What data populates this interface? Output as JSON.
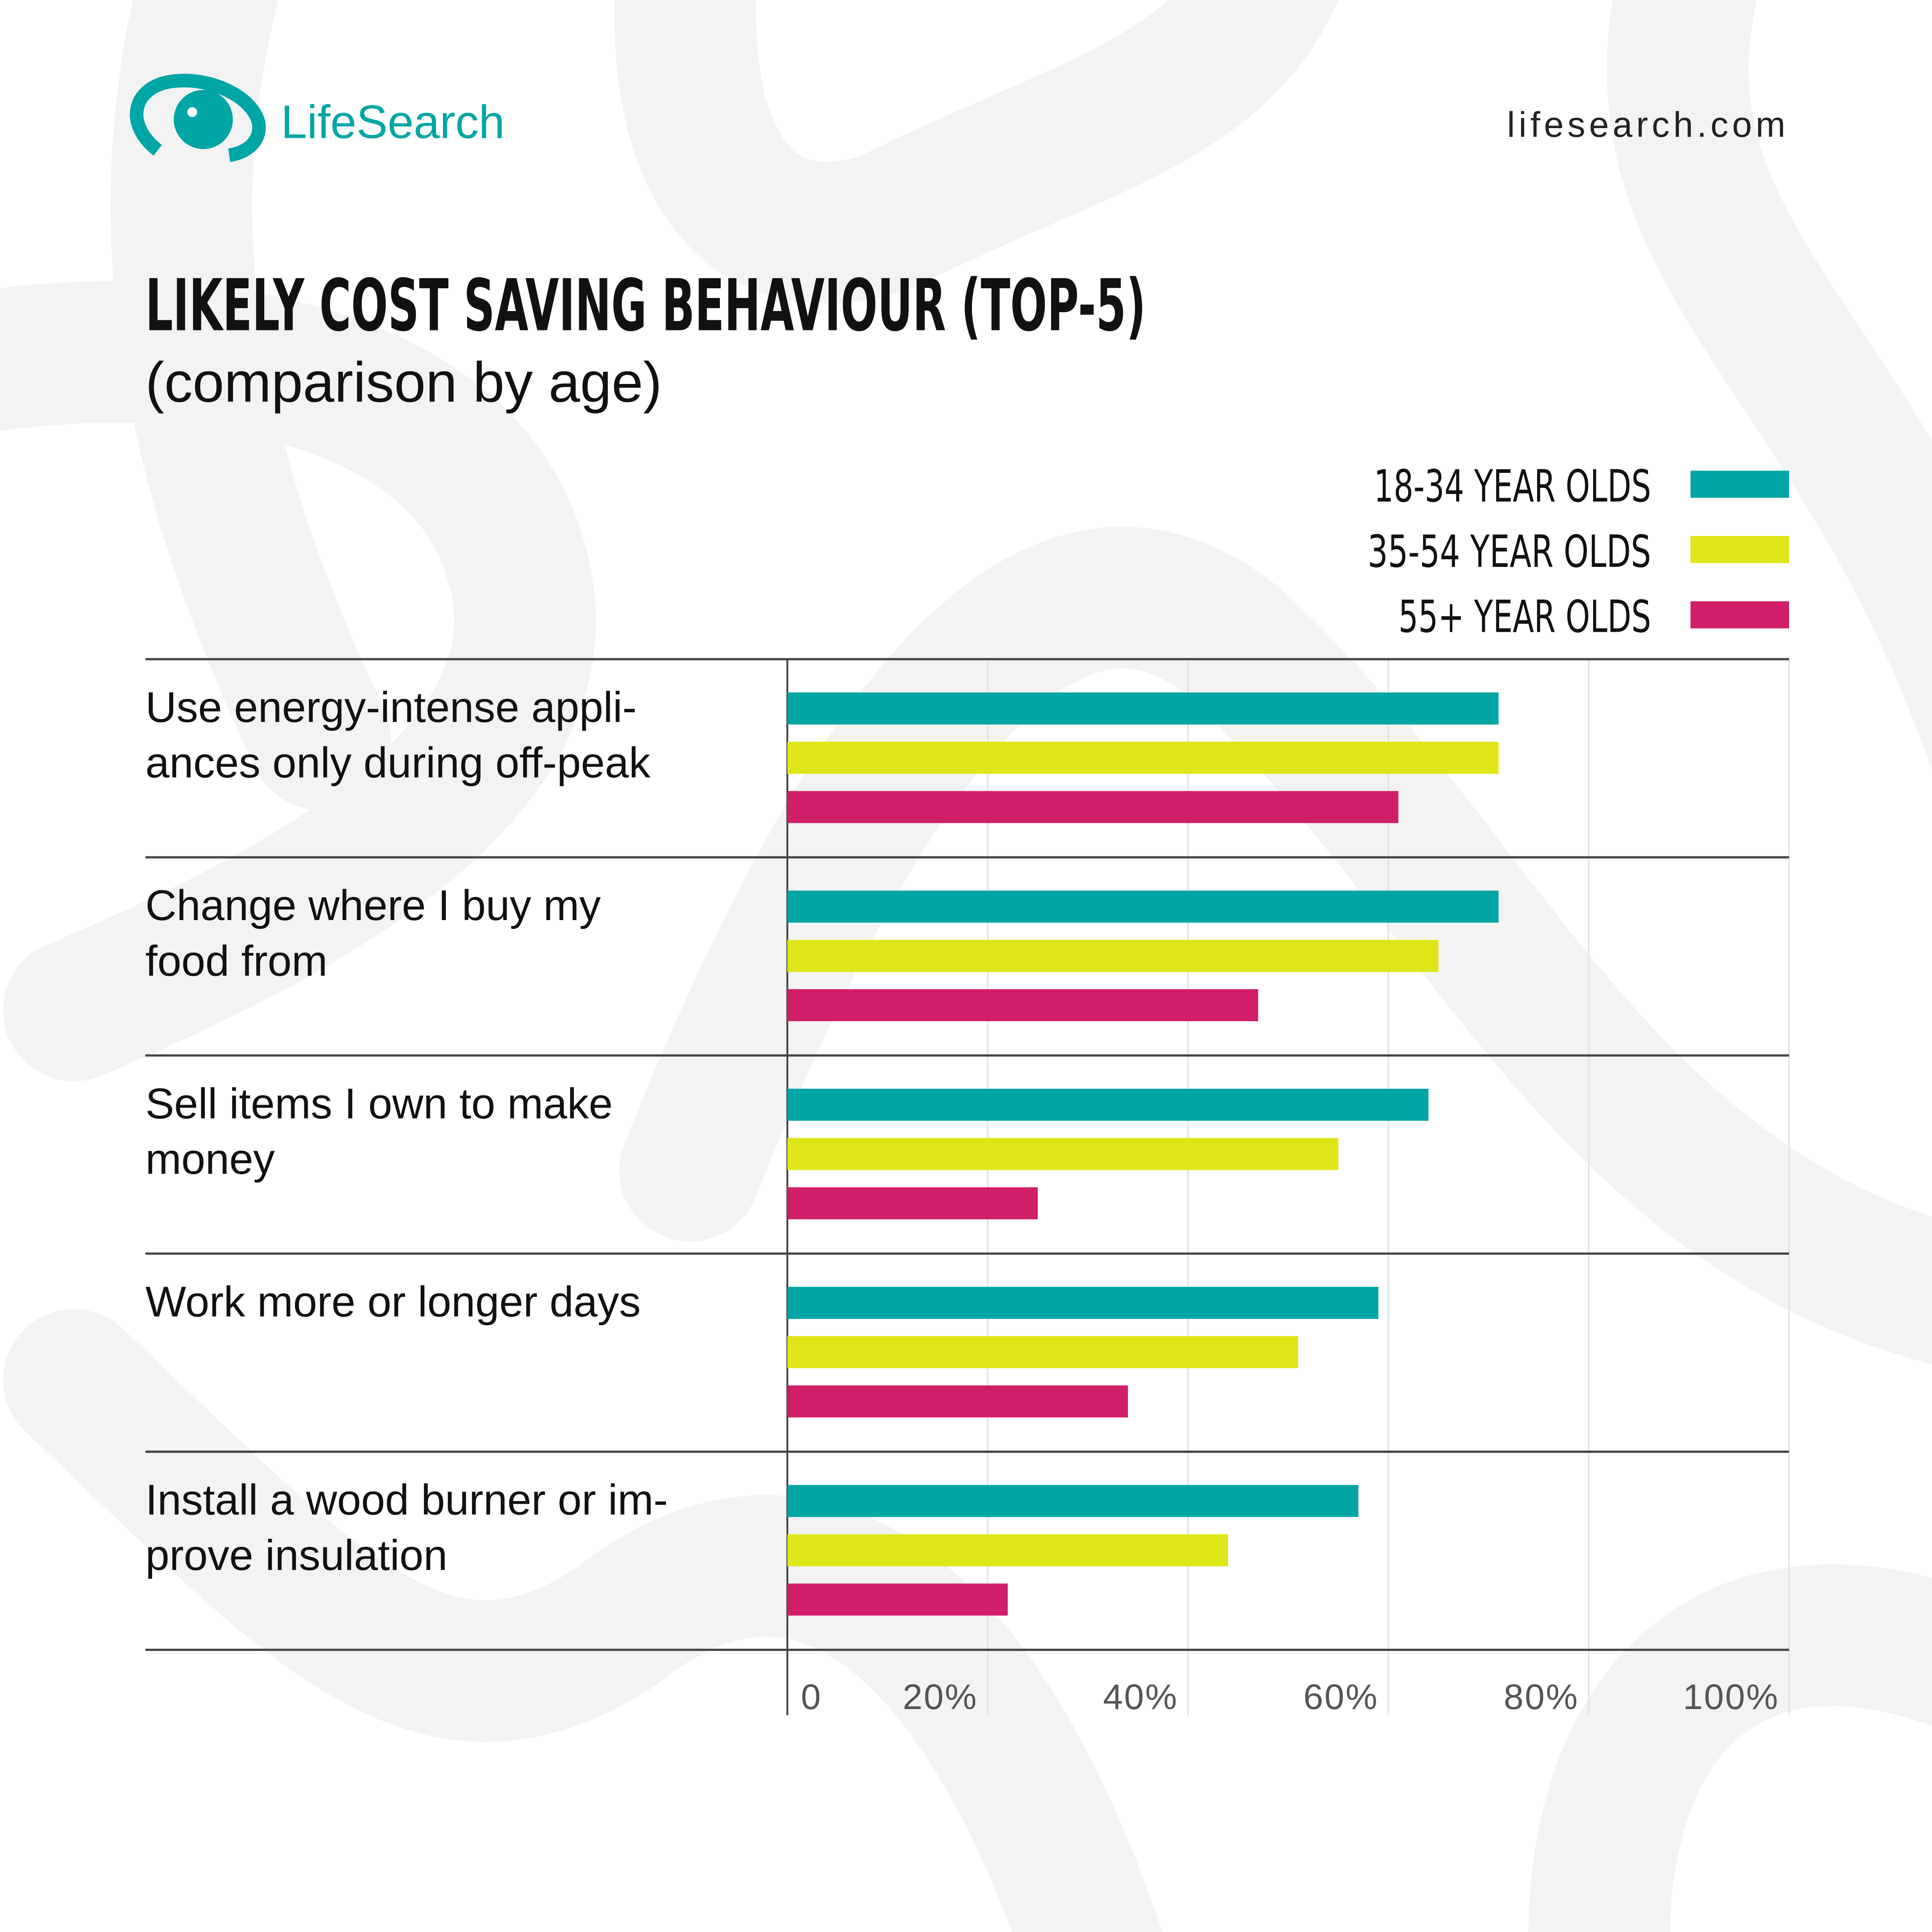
{
  "brand": {
    "name": "LifeSearch",
    "url": "lifesearch.com",
    "color": "#00a5a5"
  },
  "chart_data": {
    "type": "bar",
    "orientation": "horizontal",
    "title": "LIKELY COST SAVING BEHAVIOUR (TOP-5)",
    "subtitle": "(comparison by age)",
    "categories": [
      [
        "Use energy-intense appli-",
        "ances only during off-peak"
      ],
      [
        "Change where I buy my",
        "food from"
      ],
      [
        "Sell items I own to make",
        "money"
      ],
      [
        "Work more or longer days"
      ],
      [
        "Install a wood burner or im-",
        "prove insulation"
      ]
    ],
    "series": [
      {
        "name": "18-34 YEAR OLDS",
        "color": "#00a5a5",
        "values": [
          71,
          71,
          64,
          59,
          57
        ]
      },
      {
        "name": "35-54 YEAR OLDS",
        "color": "#dfe617",
        "values": [
          71,
          65,
          55,
          51,
          44
        ]
      },
      {
        "name": "55+ YEAR OLDS",
        "color": "#d01f68",
        "values": [
          61,
          47,
          25,
          34,
          22
        ]
      }
    ],
    "xlim": [
      0,
      100
    ],
    "xticks": [
      "0",
      "20%",
      "40%",
      "60%",
      "80%",
      "100%"
    ],
    "grid": true,
    "legend": "top-right",
    "unit": "%"
  }
}
